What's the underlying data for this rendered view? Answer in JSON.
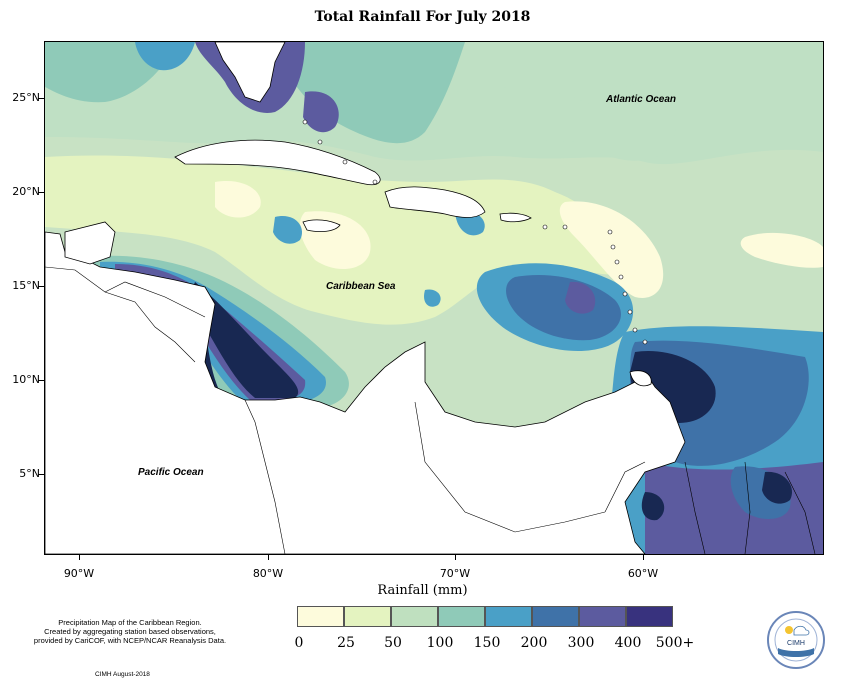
{
  "title": "Total Rainfall For July 2018",
  "x_axis_title": "Rainfall (mm)",
  "lat_labels": [
    "25°N",
    "20°N",
    "15°N",
    "10°N",
    "5°N"
  ],
  "lon_labels": [
    "90°W",
    "80°W",
    "70°W",
    "60°W"
  ],
  "map_labels": {
    "atlantic": "Atlantic Ocean",
    "caribbean": "Caribbean Sea",
    "pacific": "Pacific Ocean"
  },
  "legend": {
    "colors": [
      "#fdfbdc",
      "#e4f3c0",
      "#bfe0bf",
      "#8fcab8",
      "#4aa0c7",
      "#3f72a8",
      "#5c5b9f",
      "#38327e",
      "#182852"
    ],
    "labels": [
      "0",
      "25",
      "50",
      "100",
      "150",
      "200",
      "300",
      "400",
      "500+"
    ]
  },
  "note_lines": [
    "Precipitation Map of the Caribbean Region.",
    "Created by aggregating station based observations,",
    "provided by CariCOF, with NCEP/NCAR Reanalysis Data."
  ],
  "credit": "CIMH August-2018",
  "logo_text": "CIMH",
  "chart_data": {
    "type": "heatmap",
    "title": "Total Rainfall For July 2018",
    "xlabel": "Rainfall (mm)",
    "color_scale_bins_mm": [
      "0",
      "25",
      "50",
      "100",
      "150",
      "200",
      "300",
      "400",
      "500+"
    ],
    "lon_ticks": [
      "90°W",
      "80°W",
      "70°W",
      "60°W"
    ],
    "lat_ticks": [
      "25°N",
      "20°N",
      "15°N",
      "10°N",
      "5°N"
    ]
  }
}
